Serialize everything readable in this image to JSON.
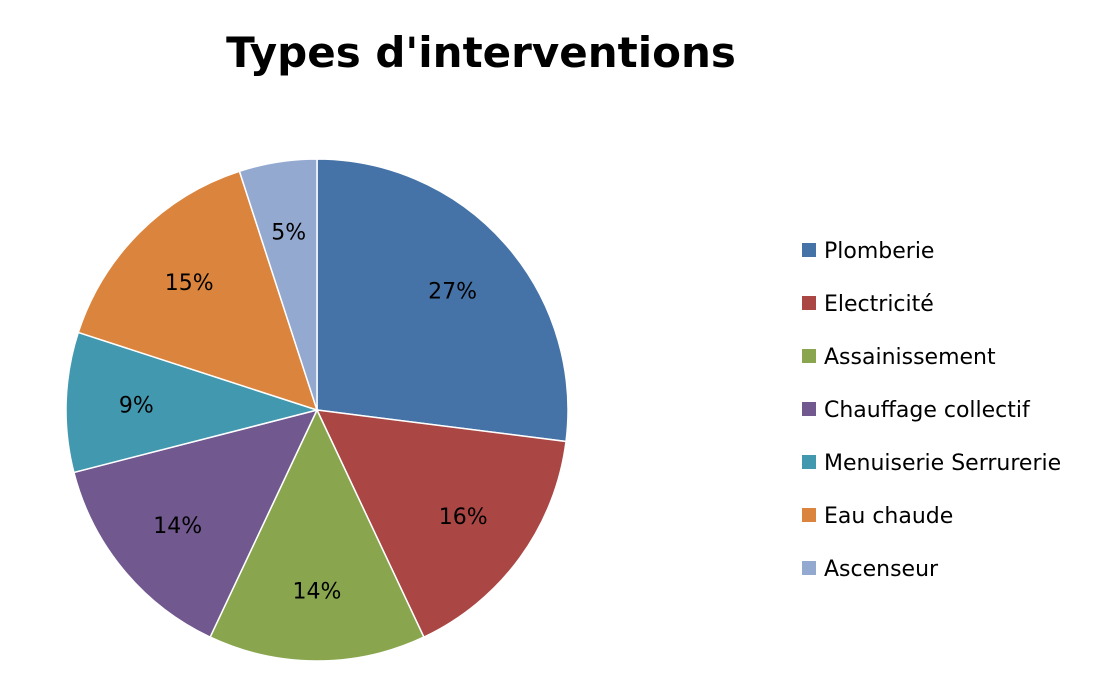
{
  "chart_data": {
    "type": "pie",
    "title": "Types d'interventions",
    "categories": [
      "Plomberie",
      "Electricité",
      "Assainissement",
      "Chauffage collectif",
      "Menuiserie Serrurerie",
      "Eau chaude",
      "Ascenseur"
    ],
    "values": [
      27,
      16,
      14,
      14,
      9,
      15,
      5
    ],
    "data_labels": [
      "27%",
      "16%",
      "14%",
      "14%",
      "9%",
      "15%",
      "5%"
    ],
    "colors": [
      "#4573A7",
      "#AA4644",
      "#89A54E",
      "#71588F",
      "#4298AF",
      "#DB843D",
      "#93A9CF"
    ],
    "start_angle_deg": 0,
    "direction": "clockwise",
    "legend_position": "right"
  }
}
